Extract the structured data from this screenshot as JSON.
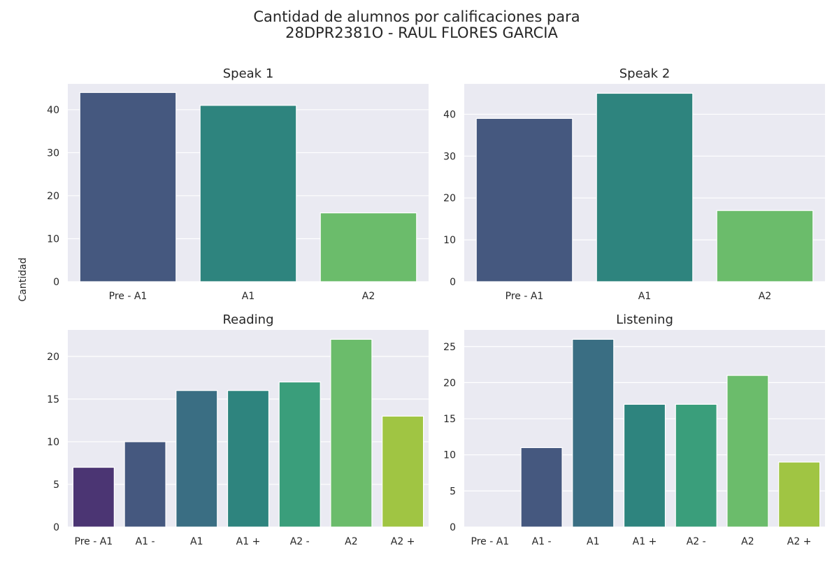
{
  "figure": {
    "title_line1": "Cantidad de alumnos por calificaciones para",
    "title_line2": "28DPR2381O - RAUL FLORES GARCIA",
    "ylabel": "Cantidad"
  },
  "chart_data": [
    {
      "type": "bar",
      "title": "Speak 1",
      "categories": [
        "Pre - A1",
        "A1",
        "A2"
      ],
      "values": [
        44,
        41,
        16
      ],
      "colors": [
        "#45587f",
        "#2e847e",
        "#6bbc6b"
      ],
      "ylim": [
        0,
        46
      ],
      "yticks": [
        0,
        10,
        20,
        30,
        40
      ],
      "grid": true
    },
    {
      "type": "bar",
      "title": "Speak 2",
      "categories": [
        "Pre - A1",
        "A1",
        "A2"
      ],
      "values": [
        39,
        45,
        17
      ],
      "colors": [
        "#45587f",
        "#2e847e",
        "#6bbc6b"
      ],
      "ylim": [
        0,
        47.25
      ],
      "yticks": [
        0,
        10,
        20,
        30,
        40
      ],
      "grid": true
    },
    {
      "type": "bar",
      "title": "Reading",
      "categories": [
        "Pre - A1",
        "A1 -",
        "A1",
        "A1 +",
        "A2 -",
        "A2",
        "A2 +"
      ],
      "values": [
        7,
        10,
        16,
        16,
        17,
        22,
        13
      ],
      "colors": [
        "#4b3573",
        "#45587f",
        "#3a6e83",
        "#2e847e",
        "#3a9e7b",
        "#6bbc6b",
        "#a0c543"
      ],
      "ylim": [
        0,
        23.1
      ],
      "yticks": [
        0,
        5,
        10,
        15,
        20
      ],
      "grid": true
    },
    {
      "type": "bar",
      "title": "Listening",
      "categories": [
        "Pre - A1",
        "A1 -",
        "A1",
        "A1 +",
        "A2 -",
        "A2",
        "A2 +"
      ],
      "values": [
        0,
        11,
        26,
        17,
        17,
        21,
        9
      ],
      "colors": [
        "#4b3573",
        "#45587f",
        "#3a6e83",
        "#2e847e",
        "#3a9e7b",
        "#6bbc6b",
        "#a0c543"
      ],
      "ylim": [
        0,
        27.3
      ],
      "yticks": [
        0,
        5,
        10,
        15,
        20,
        25
      ],
      "grid": true
    }
  ]
}
